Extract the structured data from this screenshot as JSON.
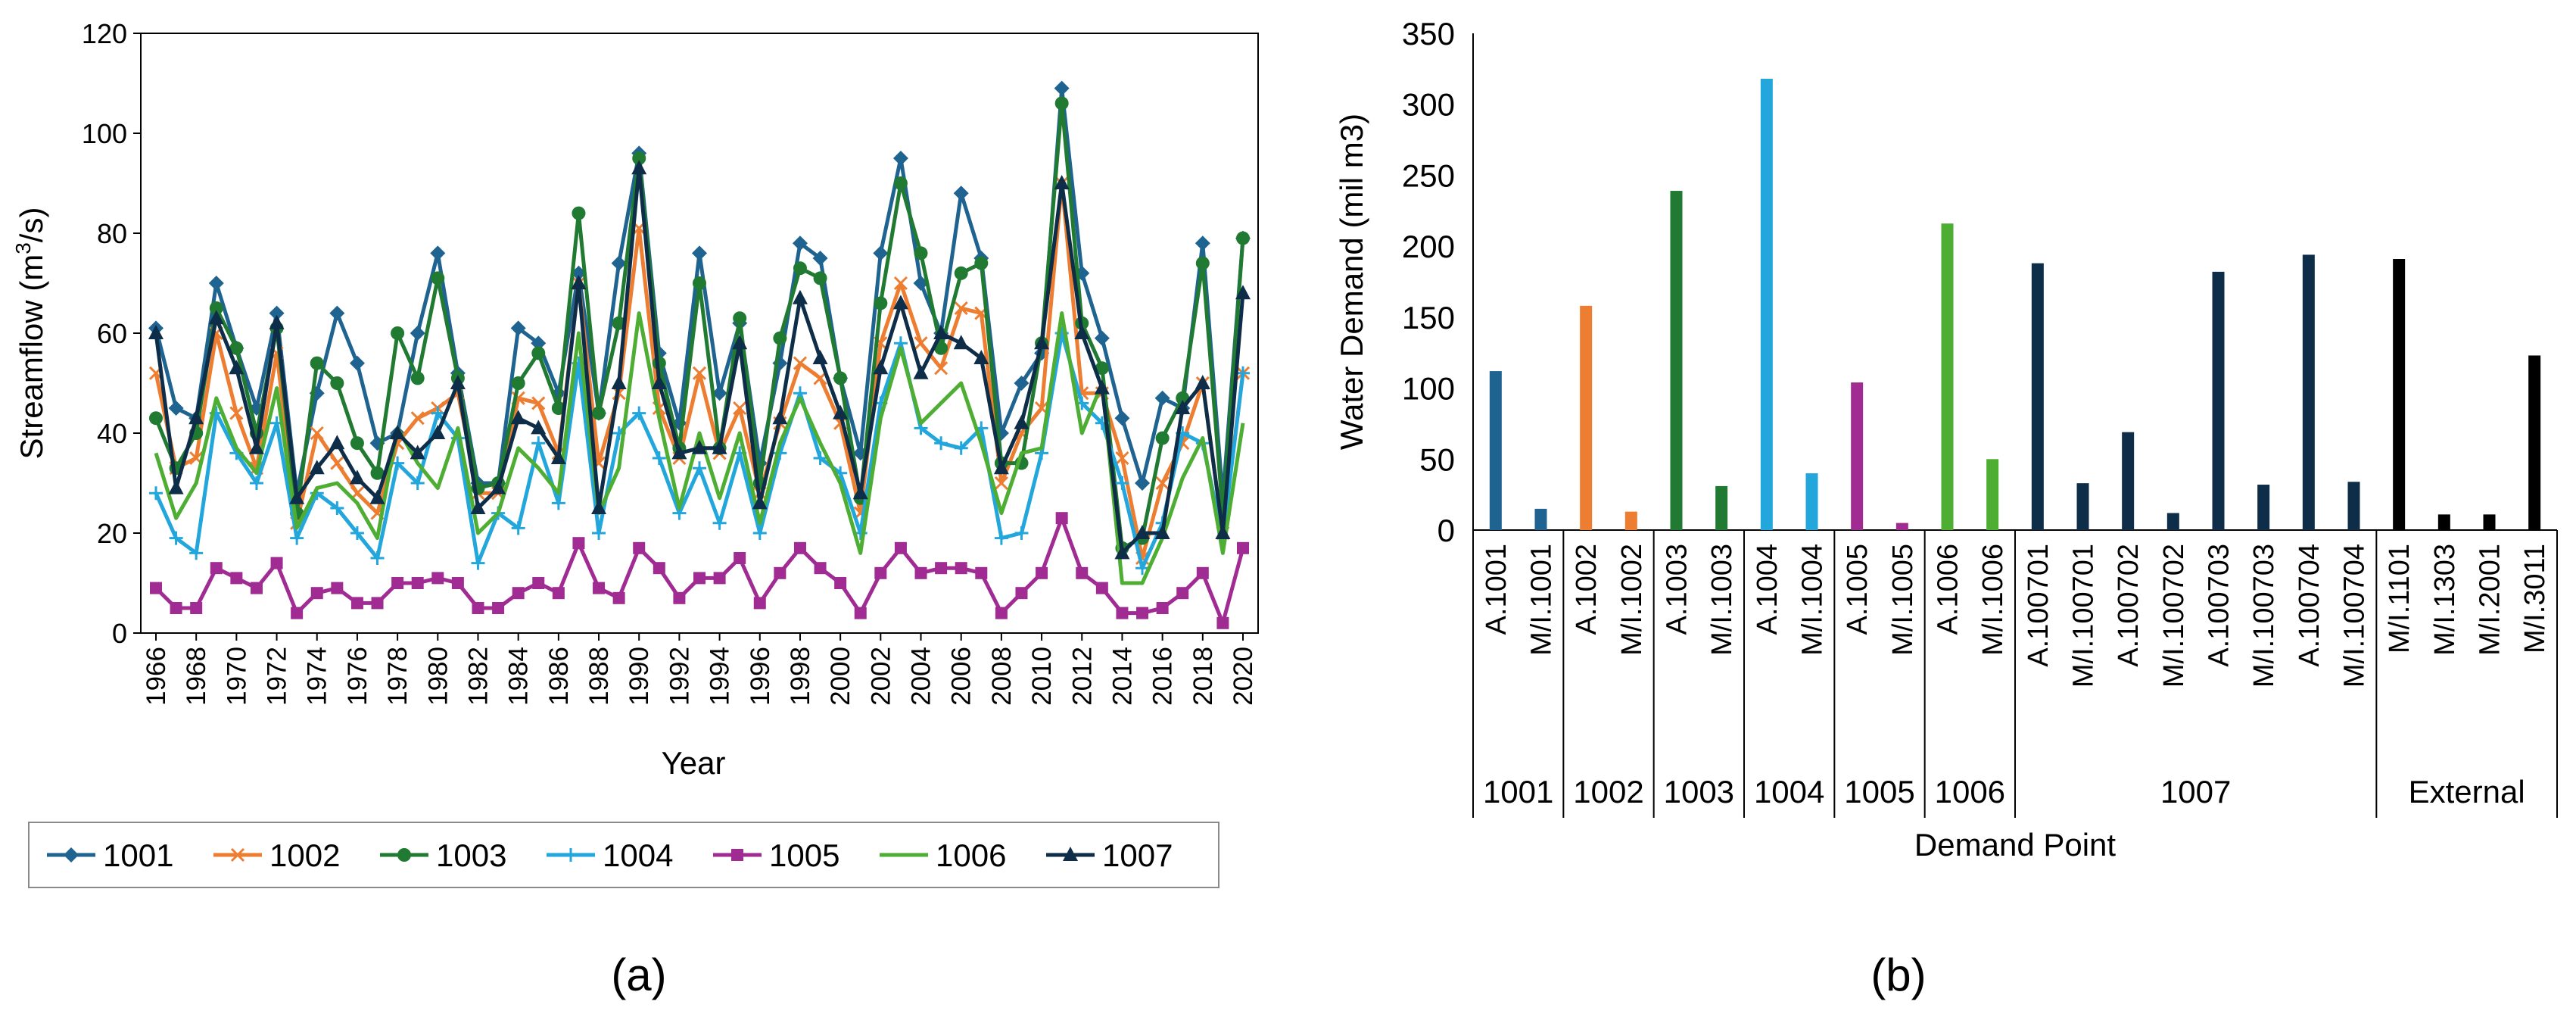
{
  "panel_a": {
    "label": "(a)"
  },
  "panel_b": {
    "label": "(b)"
  },
  "chart_data": [
    {
      "type": "line",
      "xlabel": "Year",
      "ylabel_main": "Streamflow (m",
      "ylabel_sup": "3",
      "ylabel_tail": "/s)",
      "ylim": [
        0,
        120
      ],
      "yticks": [
        0,
        20,
        40,
        60,
        80,
        100,
        120
      ],
      "x": [
        1966,
        1967,
        1968,
        1969,
        1970,
        1971,
        1972,
        1973,
        1974,
        1975,
        1976,
        1977,
        1978,
        1979,
        1980,
        1981,
        1982,
        1983,
        1984,
        1985,
        1986,
        1987,
        1988,
        1989,
        1990,
        1991,
        1992,
        1993,
        1994,
        1995,
        1996,
        1997,
        1998,
        1999,
        2000,
        2001,
        2002,
        2003,
        2004,
        2005,
        2006,
        2007,
        2008,
        2009,
        2010,
        2011,
        2012,
        2013,
        2014,
        2015,
        2016,
        2017,
        2018,
        2019,
        2020
      ],
      "xticks": [
        "1966",
        "1968",
        "1970",
        "1972",
        "1974",
        "1976",
        "1978",
        "1980",
        "1982",
        "1984",
        "1986",
        "1988",
        "1990",
        "1992",
        "1994",
        "1996",
        "1998",
        "2000",
        "2002",
        "2004",
        "2006",
        "2008",
        "2010",
        "2012",
        "2014",
        "2016",
        "2018",
        "2020"
      ],
      "series": [
        {
          "name": "1001",
          "color": "#1f6391",
          "marker": "diamond",
          "values": [
            61,
            45,
            43,
            70,
            57,
            45,
            64,
            28,
            48,
            64,
            54,
            38,
            40,
            60,
            76,
            52,
            30,
            30,
            61,
            58,
            48,
            72,
            44,
            74,
            96,
            56,
            42,
            76,
            48,
            62,
            34,
            54,
            78,
            75,
            51,
            36,
            76,
            95,
            70,
            60,
            88,
            75,
            40,
            50,
            56,
            109,
            72,
            59,
            43,
            30,
            47,
            45,
            78,
            27,
            79
          ]
        },
        {
          "name": "1002",
          "color": "#ed7d31",
          "marker": "x",
          "values": [
            52,
            33,
            35,
            60,
            44,
            33,
            56,
            22,
            40,
            34,
            28,
            24,
            38,
            43,
            45,
            48,
            28,
            28,
            47,
            46,
            36,
            70,
            34,
            48,
            81,
            45,
            35,
            52,
            36,
            45,
            28,
            42,
            54,
            51,
            42,
            24,
            58,
            70,
            58,
            53,
            65,
            64,
            30,
            40,
            45,
            90,
            48,
            48,
            35,
            15,
            30,
            38,
            50,
            20,
            52
          ]
        },
        {
          "name": "1003",
          "color": "#217a31",
          "marker": "circle",
          "values": [
            43,
            33,
            40,
            65,
            57,
            40,
            61,
            24,
            54,
            50,
            38,
            32,
            60,
            51,
            71,
            51,
            29,
            30,
            50,
            56,
            45,
            84,
            44,
            62,
            95,
            54,
            37,
            70,
            37,
            63,
            30,
            59,
            73,
            71,
            51,
            27,
            66,
            90,
            76,
            57,
            72,
            74,
            34,
            34,
            58,
            106,
            62,
            53,
            17,
            19,
            39,
            47,
            74,
            24,
            79
          ]
        },
        {
          "name": "1004",
          "color": "#22a6dc",
          "marker": "plus",
          "values": [
            28,
            19,
            16,
            44,
            36,
            30,
            42,
            19,
            28,
            25,
            20,
            15,
            34,
            30,
            44,
            39,
            14,
            24,
            21,
            38,
            26,
            54,
            20,
            40,
            44,
            35,
            24,
            33,
            22,
            36,
            20,
            36,
            48,
            35,
            32,
            20,
            46,
            58,
            41,
            38,
            37,
            41,
            19,
            20,
            36,
            60,
            46,
            42,
            30,
            13,
            22,
            40,
            38,
            19,
            52
          ]
        },
        {
          "name": "1005",
          "color": "#a02b93",
          "marker": "square",
          "values": [
            9,
            5,
            5,
            13,
            11,
            9,
            14,
            4,
            8,
            9,
            6,
            6,
            10,
            10,
            11,
            10,
            5,
            5,
            8,
            10,
            8,
            18,
            9,
            7,
            17,
            13,
            7,
            11,
            11,
            15,
            6,
            12,
            17,
            13,
            10,
            4,
            12,
            17,
            12,
            13,
            13,
            12,
            4,
            8,
            12,
            23,
            12,
            9,
            4,
            4,
            5,
            8,
            12,
            2,
            17
          ]
        },
        {
          "name": "1006",
          "color": "#4ead33",
          "marker": "none",
          "values": [
            36,
            23,
            30,
            47,
            37,
            32,
            49,
            21,
            29,
            30,
            26,
            19,
            41,
            34,
            29,
            41,
            20,
            24,
            37,
            33,
            28,
            60,
            24,
            33,
            64,
            43,
            25,
            40,
            27,
            40,
            22,
            38,
            47,
            38,
            30,
            16,
            43,
            57,
            42,
            46,
            50,
            38,
            24,
            36,
            37,
            64,
            40,
            50,
            10,
            10,
            19,
            31,
            39,
            16,
            42
          ]
        },
        {
          "name": "1007",
          "color": "#0e2d48",
          "marker": "triangle",
          "values": [
            60,
            29,
            43,
            63,
            53,
            37,
            62,
            27,
            33,
            38,
            31,
            27,
            40,
            36,
            40,
            50,
            25,
            29,
            43,
            41,
            35,
            70,
            25,
            50,
            93,
            50,
            36,
            37,
            37,
            58,
            26,
            43,
            67,
            55,
            44,
            28,
            53,
            66,
            52,
            60,
            58,
            55,
            33,
            42,
            58,
            90,
            60,
            49,
            16,
            20,
            20,
            45,
            50,
            20,
            68
          ]
        }
      ]
    },
    {
      "type": "bar",
      "ylabel": "Water Demand (mil m3)",
      "xlabel": "Demand Point",
      "ylim": [
        0,
        350
      ],
      "yticks": [
        0,
        50,
        100,
        150,
        200,
        250,
        300,
        350
      ],
      "categories": [
        "A.1001",
        "M/I.1001",
        "A.1002",
        "M/I.1002",
        "A.1003",
        "M/I.1003",
        "A.1004",
        "M/I.1004",
        "A.1005",
        "M/I.1005",
        "A.1006",
        "M/I.1006",
        "A.100701",
        "M/I.100701",
        "A.100702",
        "M/I.100702",
        "A.100703",
        "M/I.100703",
        "A.100704",
        "M/I.100704",
        "M/I.1101",
        "M/I.1303",
        "M/I.2001",
        "M/I.3011"
      ],
      "values": [
        112,
        15,
        158,
        13,
        239,
        31,
        318,
        40,
        104,
        5,
        216,
        50,
        188,
        33,
        69,
        12,
        182,
        32,
        194,
        34,
        191,
        11,
        11,
        123
      ],
      "colors": [
        "#1f6391",
        "#1f6391",
        "#ed7d31",
        "#ed7d31",
        "#217a31",
        "#217a31",
        "#22a6dc",
        "#22a6dc",
        "#a02b93",
        "#a02b93",
        "#4ead33",
        "#4ead33",
        "#0e2d48",
        "#0e2d48",
        "#0e2d48",
        "#0e2d48",
        "#0e2d48",
        "#0e2d48",
        "#0e2d48",
        "#0e2d48",
        "#000000",
        "#000000",
        "#000000",
        "#000000"
      ],
      "groups": [
        {
          "label": "1001",
          "count": 2
        },
        {
          "label": "1002",
          "count": 2
        },
        {
          "label": "1003",
          "count": 2
        },
        {
          "label": "1004",
          "count": 2
        },
        {
          "label": "1005",
          "count": 2
        },
        {
          "label": "1006",
          "count": 2
        },
        {
          "label": "1007",
          "count": 8
        },
        {
          "label": "External",
          "count": 4
        }
      ]
    }
  ]
}
